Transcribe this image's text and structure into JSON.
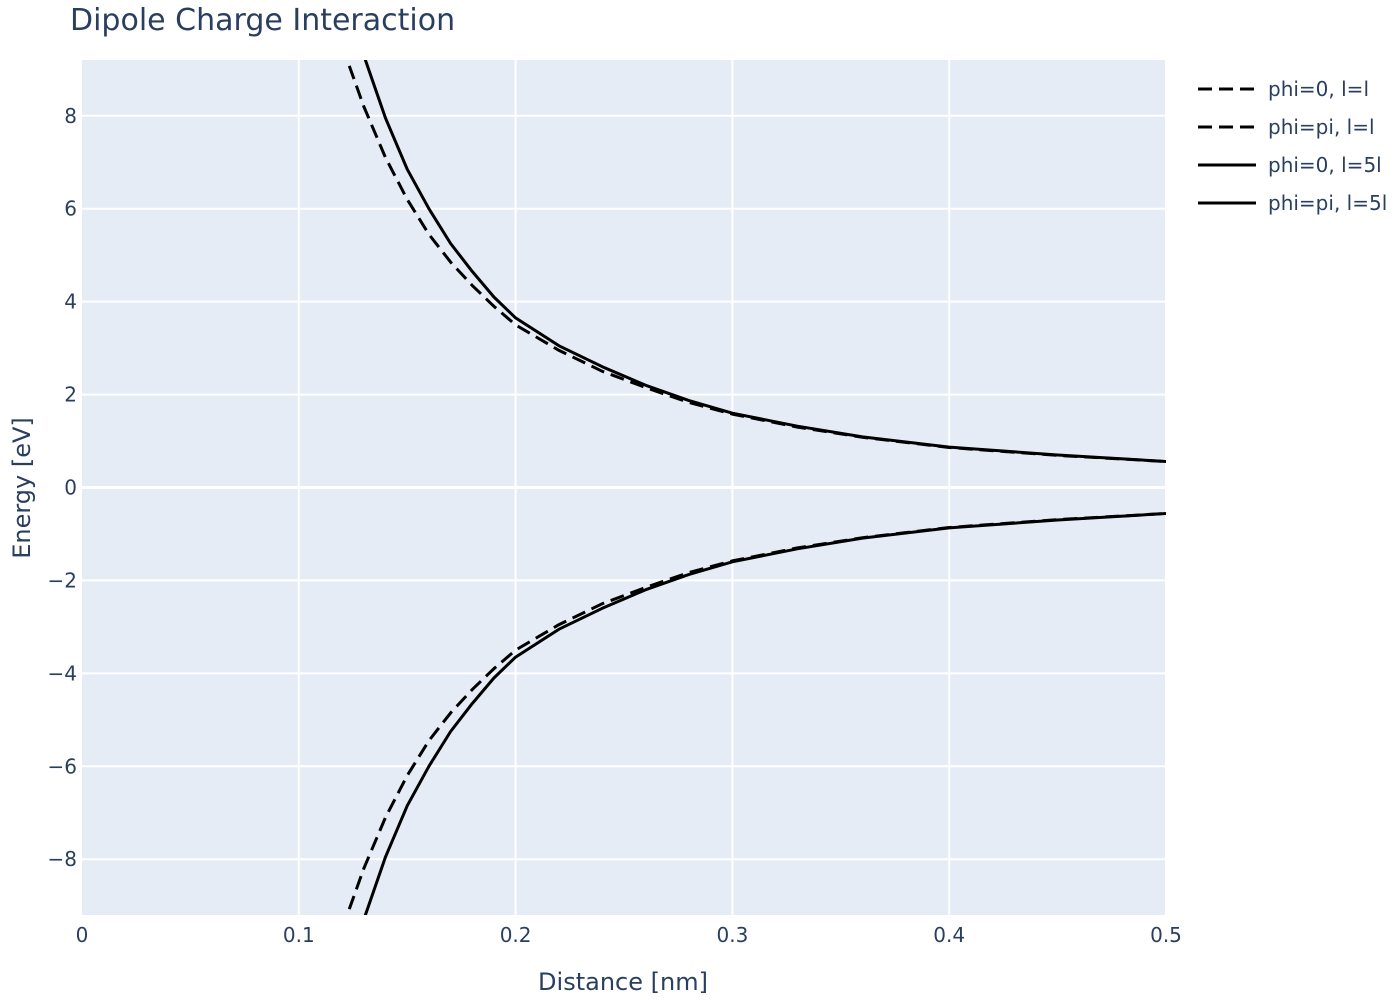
{
  "chart_data": {
    "type": "line",
    "title": "Dipole Charge Interaction",
    "xlabel": "Distance [nm]",
    "ylabel": "Energy [eV]",
    "xlim": [
      0,
      0.5
    ],
    "ylim": [
      -9.2,
      9.2
    ],
    "grid": true,
    "legend_position": "right",
    "x_ticks": [
      "0",
      "0.1",
      "0.2",
      "0.3",
      "0.4",
      "0.5"
    ],
    "x_tick_values": [
      0,
      0.1,
      0.2,
      0.3,
      0.4,
      0.5
    ],
    "y_ticks": [
      "−8",
      "−6",
      "−4",
      "−2",
      "0",
      "2",
      "4",
      "6",
      "8"
    ],
    "y_tick_values": [
      -8,
      -6,
      -4,
      -2,
      0,
      2,
      4,
      6,
      8
    ],
    "colors": {
      "plot_bg": "#e5ecf6",
      "grid": "#ffffff",
      "line": "#000000",
      "text": "#2a3f5f"
    },
    "x": [
      0.12,
      0.13,
      0.14,
      0.15,
      0.16,
      0.17,
      0.18,
      0.19,
      0.2,
      0.22,
      0.24,
      0.26,
      0.28,
      0.3,
      0.33,
      0.36,
      0.4,
      0.45,
      0.5
    ],
    "series": [
      {
        "name": "phi=0, l=l",
        "dash": "dashed",
        "values": [
          9.5,
          8.2,
          7.1,
          6.2,
          5.45,
          4.85,
          4.35,
          3.9,
          3.5,
          2.95,
          2.5,
          2.15,
          1.83,
          1.58,
          1.3,
          1.08,
          0.86,
          0.69,
          0.56
        ]
      },
      {
        "name": "phi=pi, l=l",
        "dash": "dashed",
        "values": [
          -9.5,
          -8.2,
          -7.1,
          -6.2,
          -5.45,
          -4.85,
          -4.35,
          -3.9,
          -3.5,
          -2.95,
          -2.5,
          -2.15,
          -1.83,
          -1.58,
          -1.3,
          -1.08,
          -0.86,
          -0.69,
          -0.56
        ]
      },
      {
        "name": "phi=0, l=5l",
        "dash": "solid",
        "values": [
          10.8,
          9.3,
          7.95,
          6.85,
          6.0,
          5.25,
          4.65,
          4.1,
          3.65,
          3.05,
          2.6,
          2.2,
          1.87,
          1.6,
          1.32,
          1.09,
          0.87,
          0.7,
          0.56
        ]
      },
      {
        "name": "phi=pi, l=5l",
        "dash": "solid",
        "values": [
          -10.8,
          -9.3,
          -7.95,
          -6.85,
          -6.0,
          -5.25,
          -4.65,
          -4.1,
          -3.65,
          -3.05,
          -2.6,
          -2.2,
          -1.87,
          -1.6,
          -1.32,
          -1.09,
          -0.87,
          -0.7,
          -0.56
        ]
      }
    ]
  }
}
